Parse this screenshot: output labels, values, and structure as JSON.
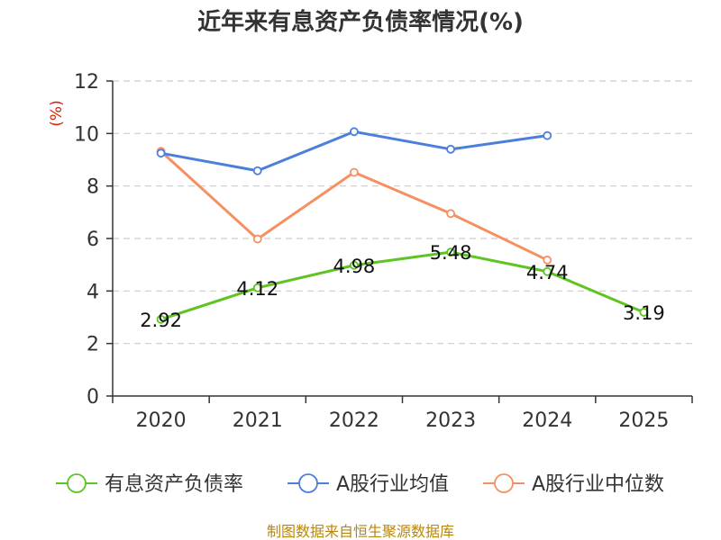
{
  "chart_data": {
    "type": "line",
    "title": "近年来有息资产负债率情况(%)",
    "ylabel": "(%)",
    "xlabel": "",
    "categories": [
      "2020",
      "2021",
      "2022",
      "2023",
      "2024",
      "2025"
    ],
    "ylim": [
      0,
      12
    ],
    "yticks": [
      0,
      2,
      4,
      6,
      8,
      10,
      12
    ],
    "grid": true,
    "legend_position": "bottom",
    "series": [
      {
        "name": "有息资产负债率",
        "color": "#5dc421",
        "values": [
          2.92,
          4.12,
          4.98,
          5.48,
          4.74,
          3.19
        ],
        "labels": [
          "2.92",
          "4.12",
          "4.98",
          "5.48",
          "4.74",
          "3.19"
        ]
      },
      {
        "name": "A股行业均值",
        "color": "#4b7fdb",
        "values": [
          9.25,
          8.58,
          10.07,
          9.4,
          9.92,
          null
        ]
      },
      {
        "name": "A股行业中位数",
        "color": "#f79060",
        "values": [
          9.32,
          5.98,
          8.52,
          6.95,
          5.18,
          null
        ]
      }
    ]
  },
  "source": "制图数据来自恒生聚源数据库"
}
